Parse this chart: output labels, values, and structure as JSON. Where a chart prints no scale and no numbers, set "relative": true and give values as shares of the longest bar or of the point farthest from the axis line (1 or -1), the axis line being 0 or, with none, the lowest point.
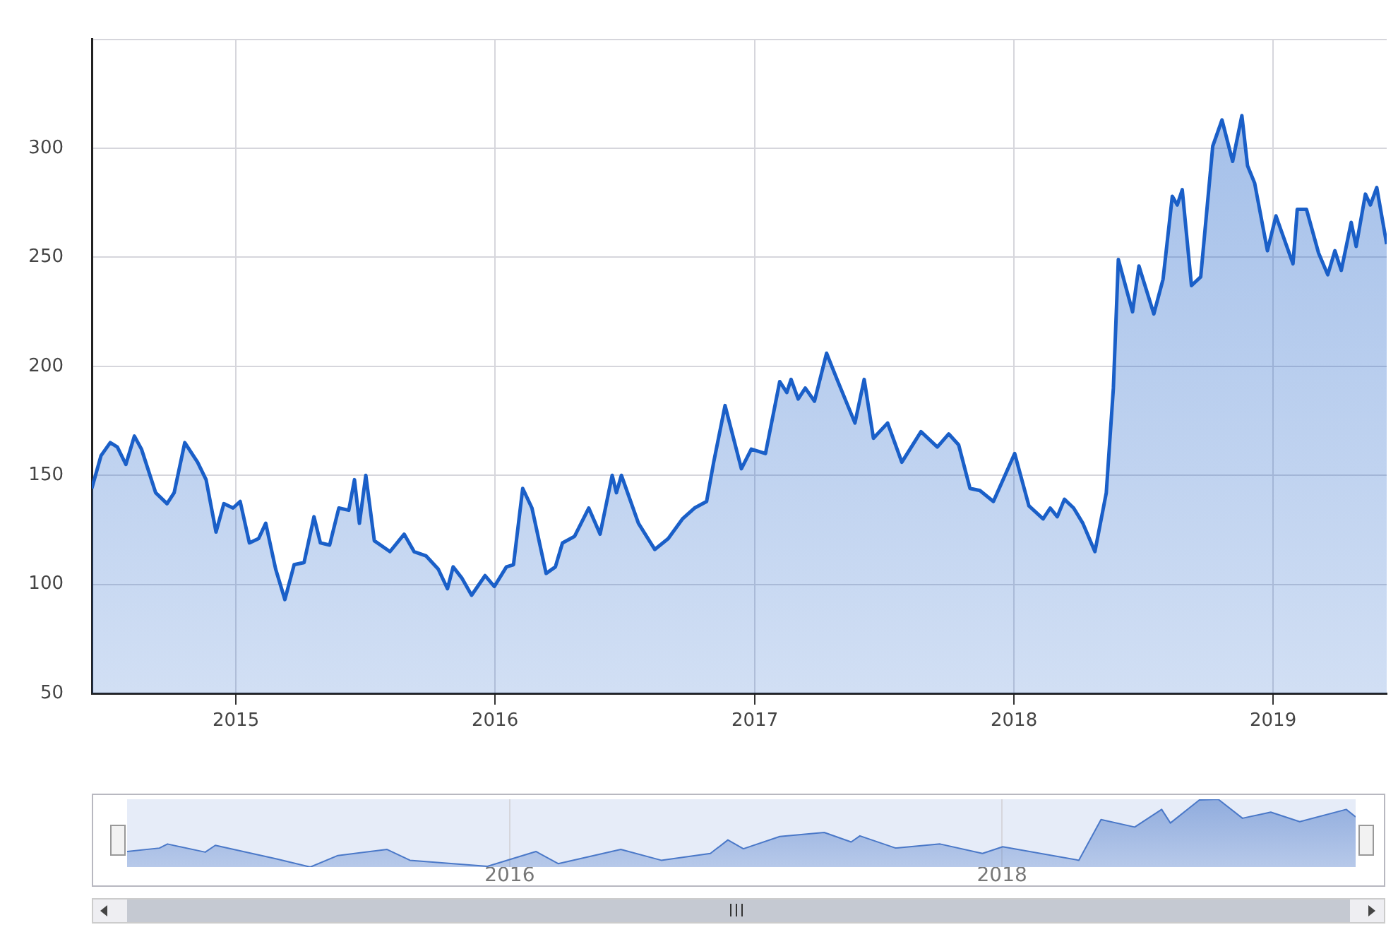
{
  "chart_data": [
    {
      "type": "area",
      "color": "#1a5fc8",
      "marker": "none",
      "grid": true,
      "xlim": [
        "2014-06-12",
        "2019-06-10"
      ],
      "xticks": [
        "2015",
        "2016",
        "2017",
        "2018",
        "2019"
      ],
      "ylim": [
        50,
        350
      ],
      "yticks": [
        50,
        100,
        150,
        200,
        250,
        300,
        {
          "value": 350,
          "label": null
        }
      ],
      "x": [
        "2014-06-12",
        "2014-06-25",
        "2014-07-08",
        "2014-07-18",
        "2014-07-30",
        "2014-08-11",
        "2014-08-21",
        "2014-09-10",
        "2014-09-26",
        "2014-10-06",
        "2014-10-21",
        "2014-11-08",
        "2014-11-20",
        "2014-12-04",
        "2014-12-15",
        "2014-12-28",
        "2015-01-07",
        "2015-01-20",
        "2015-02-02",
        "2015-02-12",
        "2015-02-26",
        "2015-03-11",
        "2015-03-24",
        "2015-04-07",
        "2015-04-21",
        "2015-04-30",
        "2015-05-13",
        "2015-05-26",
        "2015-06-09",
        "2015-06-17",
        "2015-06-24",
        "2015-07-03",
        "2015-07-15",
        "2015-08-06",
        "2015-08-26",
        "2015-09-09",
        "2015-09-26",
        "2015-10-13",
        "2015-10-26",
        "2015-11-03",
        "2015-11-15",
        "2015-11-29",
        "2015-12-18",
        "2015-12-31",
        "2016-01-17",
        "2016-01-27",
        "2016-02-09",
        "2016-02-22",
        "2016-03-13",
        "2016-03-26",
        "2016-04-05",
        "2016-04-22",
        "2016-05-12",
        "2016-05-28",
        "2016-06-14",
        "2016-06-20",
        "2016-06-27",
        "2016-07-21",
        "2016-08-13",
        "2016-09-01",
        "2016-09-21",
        "2016-10-08",
        "2016-10-25",
        "2016-11-04",
        "2016-11-20",
        "2016-12-13",
        "2016-12-27",
        "2017-01-16",
        "2017-02-05",
        "2017-02-15",
        "2017-02-21",
        "2017-03-03",
        "2017-03-13",
        "2017-03-26",
        "2017-04-12",
        "2017-04-28",
        "2017-05-22",
        "2017-06-04",
        "2017-06-17",
        "2017-07-07",
        "2017-07-27",
        "2017-08-23",
        "2017-09-15",
        "2017-10-01",
        "2017-10-15",
        "2017-10-31",
        "2017-11-14",
        "2017-12-03",
        "2018-01-02",
        "2018-01-22",
        "2018-02-11",
        "2018-02-21",
        "2018-03-03",
        "2018-03-13",
        "2018-03-26",
        "2018-04-08",
        "2018-04-25",
        "2018-05-11",
        "2018-05-21",
        "2018-05-28",
        "2018-06-17",
        "2018-06-26",
        "2018-07-17",
        "2018-07-30",
        "2018-08-12",
        "2018-08-19",
        "2018-08-26",
        "2018-09-08",
        "2018-09-21",
        "2018-10-08",
        "2018-10-21",
        "2018-11-05",
        "2018-11-18",
        "2018-11-26",
        "2018-12-06",
        "2018-12-24",
        "2019-01-05",
        "2019-01-29",
        "2019-02-04",
        "2019-02-17",
        "2019-03-06",
        "2019-03-19",
        "2019-03-29",
        "2019-04-07",
        "2019-04-21",
        "2019-04-28",
        "2019-05-11",
        "2019-05-18",
        "2019-05-27",
        "2019-06-10"
      ],
      "values": [
        144,
        159,
        165,
        163,
        155,
        168,
        162,
        142,
        137,
        142,
        165,
        156,
        148,
        124,
        137,
        135,
        138,
        119,
        121,
        128,
        107,
        93,
        109,
        110,
        131,
        119,
        118,
        135,
        134,
        148,
        128,
        150,
        120,
        115,
        123,
        115,
        113,
        107,
        98,
        108,
        103,
        95,
        104,
        99,
        108,
        109,
        144,
        135,
        105,
        108,
        119,
        122,
        135,
        123,
        150,
        142,
        150,
        128,
        116,
        121,
        130,
        135,
        138,
        156,
        182,
        153,
        162,
        160,
        193,
        188,
        194,
        185,
        190,
        184,
        206,
        193,
        174,
        194,
        167,
        174,
        156,
        170,
        163,
        169,
        164,
        144,
        143,
        138,
        160,
        136,
        130,
        135,
        131,
        139,
        135,
        128,
        115,
        142,
        190,
        249,
        225,
        246,
        224,
        240,
        278,
        274,
        281,
        237,
        241,
        301,
        313,
        294,
        315,
        292,
        284,
        253,
        269,
        247,
        272,
        272,
        252,
        242,
        253,
        244,
        266,
        255,
        279,
        274,
        282,
        256
      ]
    },
    {
      "type": "area",
      "relative": true,
      "color": "#4a78c8",
      "marker": "none",
      "grid": "x",
      "xlim": [
        "2014-06-12",
        "2019-06-10"
      ],
      "xticks": [
        "2016",
        "2018"
      ],
      "x": [
        "2014-06-12",
        "2014-07-30",
        "2014-08-11",
        "2014-10-06",
        "2014-10-21",
        "2015-01-20",
        "2015-03-11",
        "2015-04-21",
        "2015-07-03",
        "2015-08-06",
        "2015-11-29",
        "2016-02-09",
        "2016-03-13",
        "2016-06-14",
        "2016-08-13",
        "2016-10-25",
        "2016-11-20",
        "2016-12-13",
        "2017-02-05",
        "2017-04-12",
        "2017-05-22",
        "2017-06-04",
        "2017-07-27",
        "2017-10-01",
        "2017-12-03",
        "2018-01-02",
        "2018-04-25",
        "2018-05-28",
        "2018-07-17",
        "2018-08-26",
        "2018-09-08",
        "2018-10-21",
        "2018-11-18",
        "2018-12-24",
        "2019-02-04",
        "2019-03-19",
        "2019-05-27",
        "2019-06-10"
      ],
      "values": [
        0.23,
        0.28,
        0.34,
        0.22,
        0.32,
        0.12,
        0,
        0.17,
        0.26,
        0.1,
        0.01,
        0.23,
        0.05,
        0.26,
        0.1,
        0.2,
        0.4,
        0.27,
        0.45,
        0.51,
        0.37,
        0.46,
        0.28,
        0.34,
        0.2,
        0.3,
        0.1,
        0.7,
        0.59,
        0.85,
        0.65,
        0.99,
        1,
        0.72,
        0.81,
        0.67,
        0.85,
        0.74
      ]
    }
  ]
}
